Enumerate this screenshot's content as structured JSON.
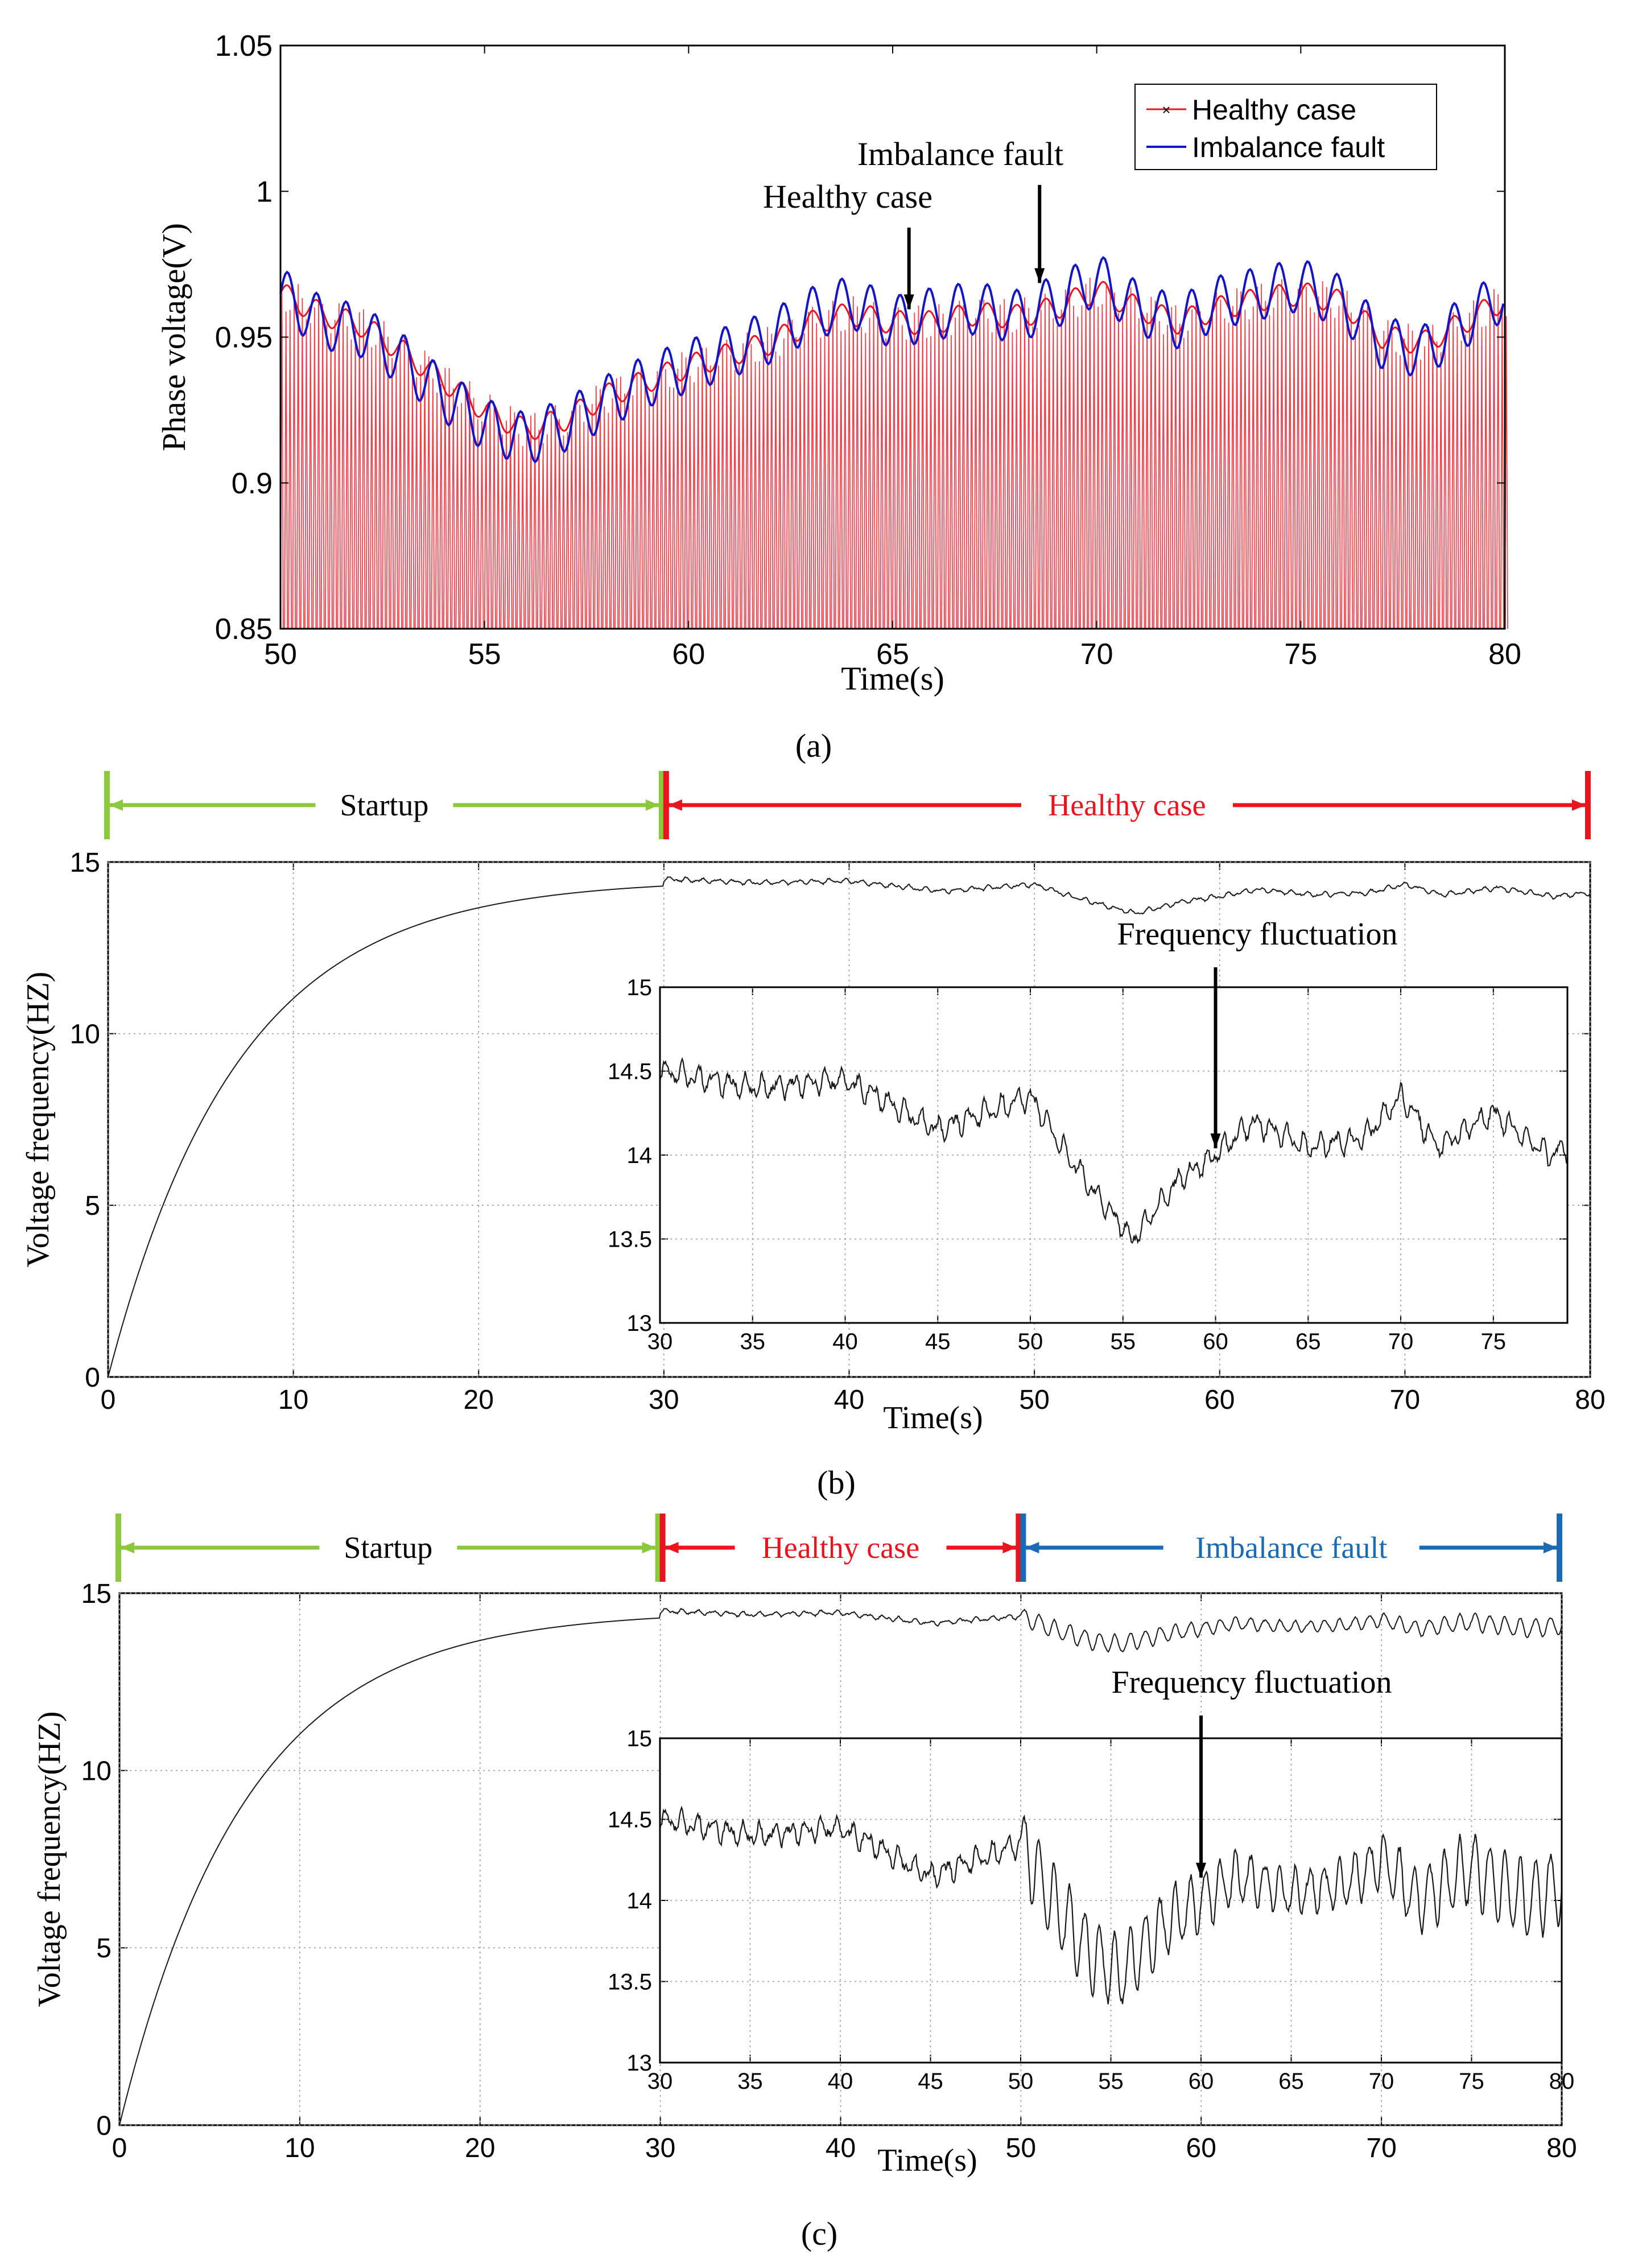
{
  "colors": {
    "healthy": "#e8141e",
    "imbalance": "#1414c8",
    "startup_green": "#8cc83c",
    "healthy_red": "#e8141e",
    "fault_blue": "#1a6ab4",
    "line_black": "#1a1a1a",
    "grid": "#999999"
  },
  "chart_data": [
    {
      "id": "a",
      "type": "line",
      "caption": "(a)",
      "xlabel": "Time(s)",
      "ylabel": "Phase voltage(V)",
      "xlim": [
        50,
        80
      ],
      "ylim": [
        0.85,
        1.05
      ],
      "xticks": [
        "50",
        "55",
        "60",
        "65",
        "70",
        "75",
        "80"
      ],
      "yticks": [
        "0.85",
        "0.9",
        "0.95",
        "1",
        "1.05"
      ],
      "grid": false,
      "legend_position": "top-right",
      "legend": [
        "Healthy case",
        "Imbalance fault"
      ],
      "annotations": [
        {
          "text": "Healthy case",
          "x": 65.4,
          "y": 0.958
        },
        {
          "text": "Imbalance fault",
          "x": 68.6,
          "y": 0.967
        }
      ],
      "series": [
        {
          "name": "Healthy case",
          "envelope_x": [
            50,
            51,
            52,
            53,
            54,
            55,
            56,
            57,
            58,
            59,
            60,
            61,
            62,
            63,
            64,
            65,
            66,
            67,
            68,
            69,
            70,
            71,
            72,
            73,
            74,
            75,
            76,
            77,
            78,
            79,
            80
          ],
          "envelope_y": [
            0.965,
            0.958,
            0.954,
            0.945,
            0.935,
            0.925,
            0.918,
            0.922,
            0.93,
            0.935,
            0.94,
            0.944,
            0.948,
            0.955,
            0.958,
            0.955,
            0.955,
            0.958,
            0.957,
            0.96,
            0.966,
            0.96,
            0.955,
            0.96,
            0.963,
            0.965,
            0.962,
            0.95,
            0.948,
            0.955,
            0.963
          ]
        },
        {
          "name": "Imbalance fault",
          "envelope_x": [
            50,
            51,
            52,
            53,
            54,
            55,
            56,
            57,
            58,
            59,
            60,
            61,
            62,
            63,
            64,
            65,
            66,
            67,
            68,
            69,
            70,
            71,
            72,
            73,
            74,
            75,
            76,
            77,
            78,
            79,
            80
          ],
          "envelope_y": [
            0.965,
            0.955,
            0.952,
            0.942,
            0.93,
            0.92,
            0.915,
            0.92,
            0.928,
            0.935,
            0.94,
            0.945,
            0.95,
            0.958,
            0.962,
            0.955,
            0.958,
            0.96,
            0.957,
            0.962,
            0.97,
            0.96,
            0.955,
            0.962,
            0.965,
            0.968,
            0.962,
            0.948,
            0.945,
            0.955,
            0.965
          ]
        }
      ]
    },
    {
      "id": "b",
      "type": "line",
      "caption": "(b)",
      "xlabel": "Time(s)",
      "ylabel": "Voltage frequency(HZ)",
      "xlim": [
        0,
        80
      ],
      "ylim": [
        0,
        15
      ],
      "xticks": [
        "0",
        "10",
        "20",
        "30",
        "40",
        "50",
        "60",
        "70",
        "80"
      ],
      "yticks": [
        "0",
        "5",
        "10",
        "15"
      ],
      "grid": true,
      "phases": [
        {
          "label": "Startup",
          "from": 0,
          "to": 30,
          "color": "startup_green"
        },
        {
          "label": "Healthy case",
          "from": 30,
          "to": 80,
          "color": "healthy_red"
        }
      ],
      "series": [
        {
          "name": "frequency",
          "startup_target": 14.5,
          "startup_tau": 7.0,
          "steady_x": [
            30,
            35,
            40,
            45,
            50,
            52,
            54,
            55.5,
            58,
            60,
            62,
            65,
            68,
            70,
            72,
            75,
            78,
            80
          ],
          "steady_y": [
            14.5,
            14.4,
            14.45,
            14.15,
            14.35,
            14.0,
            13.7,
            13.5,
            13.85,
            14.0,
            14.2,
            14.05,
            14.1,
            14.35,
            14.05,
            14.25,
            14.0,
            14.1
          ],
          "fault_from": null
        }
      ],
      "inset": {
        "xlim": [
          30,
          79
        ],
        "ylim": [
          13,
          15
        ],
        "xticks": [
          "30",
          "35",
          "40",
          "45",
          "50",
          "55",
          "60",
          "65",
          "70",
          "75"
        ],
        "yticks": [
          "13",
          "13.5",
          "14",
          "14.5",
          "15"
        ],
        "annotation": {
          "text": "Frequency fluctuation",
          "x": 60,
          "y": 14.02
        }
      }
    },
    {
      "id": "c",
      "type": "line",
      "caption": "(c)",
      "xlabel": "Time(s)",
      "ylabel": "Voltage frequency(HZ)",
      "xlim": [
        0,
        80
      ],
      "ylim": [
        0,
        15
      ],
      "xticks": [
        "0",
        "10",
        "20",
        "30",
        "40",
        "50",
        "60",
        "70",
        "80"
      ],
      "yticks": [
        "0",
        "5",
        "10",
        "15"
      ],
      "grid": true,
      "phases": [
        {
          "label": "Startup",
          "from": 0,
          "to": 30,
          "color": "startup_green"
        },
        {
          "label": "Healthy case",
          "from": 30,
          "to": 50,
          "color": "healthy_red"
        },
        {
          "label": "Imbalance fault",
          "from": 50,
          "to": 80,
          "color": "fault_blue"
        }
      ],
      "series": [
        {
          "name": "frequency",
          "startup_target": 14.5,
          "startup_tau": 7.0,
          "steady_x": [
            30,
            35,
            40,
            45,
            50,
            52,
            54,
            55.5,
            58,
            60,
            62,
            65,
            68,
            70,
            72,
            75,
            78,
            80
          ],
          "steady_y": [
            14.5,
            14.4,
            14.45,
            14.15,
            14.35,
            13.95,
            13.65,
            13.55,
            13.85,
            14.0,
            14.15,
            14.05,
            14.1,
            14.25,
            14.0,
            14.2,
            14.0,
            14.1
          ],
          "fault_from": 50
        }
      ],
      "inset": {
        "xlim": [
          30,
          80
        ],
        "ylim": [
          13,
          15
        ],
        "xticks": [
          "30",
          "35",
          "40",
          "45",
          "50",
          "55",
          "60",
          "65",
          "70",
          "75",
          "80"
        ],
        "yticks": [
          "13",
          "13.5",
          "14",
          "14.5",
          "15"
        ],
        "annotation": {
          "text": "Frequency fluctuation",
          "x": 60,
          "y": 14.12
        }
      }
    }
  ]
}
